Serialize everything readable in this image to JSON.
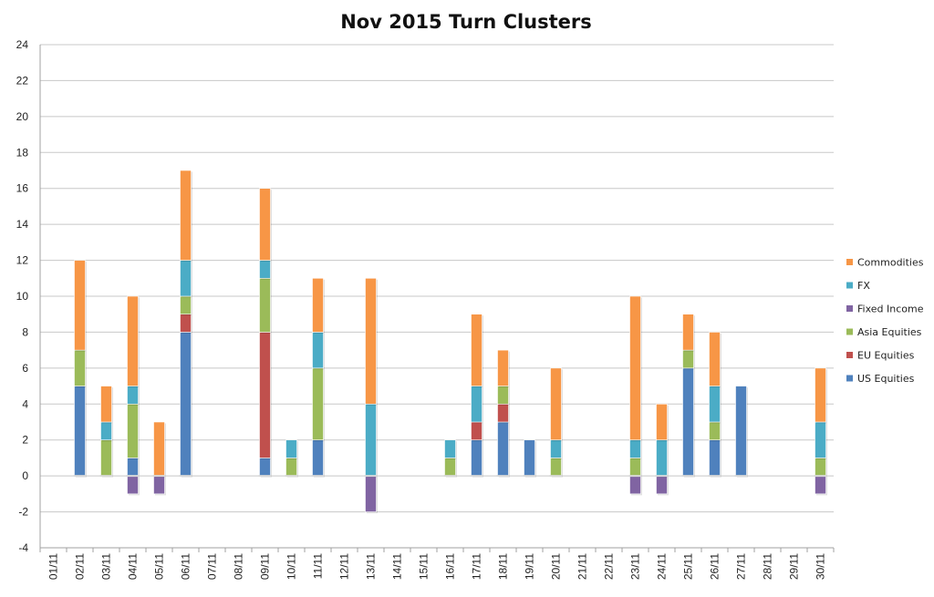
{
  "chart_data": {
    "type": "bar",
    "stacked": true,
    "title": "Nov 2015 Turn Clusters",
    "xlabel": "",
    "ylabel": "",
    "ylim": [
      -4,
      24
    ],
    "yticks": [
      -4,
      -2,
      0,
      2,
      4,
      6,
      8,
      10,
      12,
      14,
      16,
      18,
      20,
      22,
      24
    ],
    "grid": true,
    "legend_position": "right",
    "categories": [
      "01/11",
      "02/11",
      "03/11",
      "04/11",
      "05/11",
      "06/11",
      "07/11",
      "08/11",
      "09/11",
      "10/11",
      "11/11",
      "12/11",
      "13/11",
      "14/11",
      "15/11",
      "16/11",
      "17/11",
      "18/11",
      "19/11",
      "20/11",
      "21/11",
      "22/11",
      "23/11",
      "24/11",
      "25/11",
      "26/11",
      "27/11",
      "28/11",
      "29/11",
      "30/11"
    ],
    "series": [
      {
        "name": "US Equities",
        "color": "#4f81bd",
        "values": [
          0,
          5,
          0,
          1,
          0,
          8,
          0,
          0,
          1,
          0,
          2,
          0,
          0,
          0,
          0,
          0,
          2,
          3,
          2,
          0,
          0,
          0,
          0,
          0,
          6,
          2,
          5,
          0,
          0,
          0
        ]
      },
      {
        "name": "EU Equities",
        "color": "#c0504d",
        "values": [
          0,
          0,
          0,
          0,
          0,
          1,
          0,
          0,
          7,
          0,
          0,
          0,
          0,
          0,
          0,
          0,
          1,
          1,
          0,
          0,
          0,
          0,
          0,
          0,
          0,
          0,
          0,
          0,
          0,
          0
        ]
      },
      {
        "name": "Asia Equities",
        "color": "#9bbb59",
        "values": [
          0,
          2,
          2,
          3,
          0,
          1,
          0,
          0,
          3,
          1,
          4,
          0,
          0,
          0,
          0,
          1,
          0,
          1,
          0,
          1,
          0,
          0,
          1,
          0,
          1,
          1,
          0,
          0,
          0,
          1
        ]
      },
      {
        "name": "Fixed Income",
        "color": "#8064a2",
        "values": [
          0,
          0,
          0,
          -1,
          -1,
          0,
          0,
          0,
          0,
          0,
          0,
          0,
          -2,
          0,
          0,
          0,
          0,
          0,
          0,
          0,
          0,
          0,
          -1,
          -1,
          0,
          0,
          0,
          0,
          0,
          -1
        ]
      },
      {
        "name": "FX",
        "color": "#4bacc6",
        "values": [
          0,
          0,
          1,
          1,
          0,
          2,
          0,
          0,
          1,
          1,
          2,
          0,
          4,
          0,
          0,
          1,
          2,
          0,
          0,
          1,
          0,
          0,
          1,
          2,
          0,
          2,
          0,
          0,
          0,
          2
        ]
      },
      {
        "name": "Commodities",
        "color": "#f79646",
        "values": [
          0,
          5,
          2,
          5,
          3,
          5,
          0,
          0,
          4,
          0,
          3,
          0,
          7,
          0,
          0,
          0,
          4,
          2,
          0,
          4,
          0,
          0,
          8,
          2,
          2,
          3,
          0,
          0,
          0,
          3
        ]
      }
    ]
  }
}
